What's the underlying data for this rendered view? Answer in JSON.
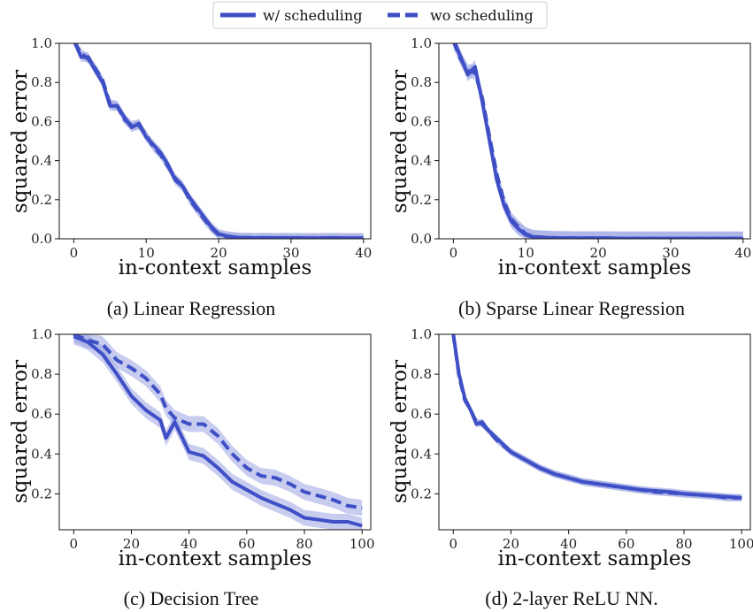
{
  "legend": {
    "items": [
      {
        "label": "w/ scheduling",
        "dash": "solid"
      },
      {
        "label": "wo scheduling",
        "dash": "dashed"
      }
    ]
  },
  "colors": {
    "line": "#3f4fc6",
    "band": "#9aa4e2"
  },
  "chart_data": [
    {
      "type": "line",
      "caption": "(a) Linear Regression",
      "xlabel": "in-context samples",
      "ylabel": "squared error",
      "xlim": [
        -2,
        41
      ],
      "ylim": [
        0,
        1
      ],
      "xticks": [
        0,
        10,
        20,
        30,
        40
      ],
      "yticks": [
        0.0,
        0.2,
        0.4,
        0.6,
        0.8,
        1.0
      ],
      "ytick_labels": [
        "0.0",
        "0.2",
        "0.4",
        "0.6",
        "0.8",
        "1.0"
      ],
      "x": [
        0,
        1,
        2,
        3,
        4,
        5,
        6,
        7,
        8,
        9,
        10,
        11,
        12,
        13,
        14,
        15,
        16,
        17,
        18,
        19,
        20,
        21,
        22,
        23,
        24,
        25,
        26,
        27,
        28,
        29,
        30,
        31,
        32,
        33,
        34,
        35,
        36,
        37,
        38,
        39,
        40
      ],
      "series": [
        {
          "name": "w/ scheduling",
          "values": [
            1.02,
            0.93,
            0.93,
            0.86,
            0.8,
            0.68,
            0.68,
            0.62,
            0.57,
            0.59,
            0.52,
            0.48,
            0.44,
            0.38,
            0.3,
            0.27,
            0.21,
            0.16,
            0.11,
            0.06,
            0.025,
            0.015,
            0.01,
            0.005,
            0.006,
            0.004,
            0.005,
            0.005,
            0.004,
            0.005,
            0.004,
            0.005,
            0.003,
            0.004,
            0.003,
            0.004,
            0.005,
            0.003,
            0.004,
            0.003,
            0.003
          ],
          "band": 0.025
        },
        {
          "name": "wo scheduling",
          "values": [
            1.01,
            0.95,
            0.92,
            0.87,
            0.81,
            0.69,
            0.68,
            0.61,
            0.58,
            0.58,
            0.53,
            0.47,
            0.43,
            0.37,
            0.31,
            0.27,
            0.2,
            0.15,
            0.1,
            0.055,
            0.02,
            0.012,
            0.008,
            0.005,
            0.005,
            0.004,
            0.004,
            0.005,
            0.004,
            0.004,
            0.004,
            0.004,
            0.003,
            0.004,
            0.003,
            0.004,
            0.004,
            0.003,
            0.003,
            0.003,
            0.003
          ],
          "band": 0.025
        }
      ]
    },
    {
      "type": "line",
      "caption": "(b) Sparse Linear Regression",
      "xlabel": "in-context samples",
      "ylabel": "squared error",
      "xlim": [
        -2,
        41
      ],
      "ylim": [
        0,
        1
      ],
      "xticks": [
        0,
        10,
        20,
        30,
        40
      ],
      "yticks": [
        0.0,
        0.2,
        0.4,
        0.6,
        0.8,
        1.0
      ],
      "ytick_labels": [
        "0.0",
        "0.2",
        "0.4",
        "0.6",
        "0.8",
        "1.0"
      ],
      "x": [
        0,
        1,
        2,
        3,
        4,
        5,
        6,
        7,
        8,
        9,
        10,
        11,
        12,
        13,
        14,
        15,
        16,
        17,
        18,
        19,
        20,
        21,
        22,
        23,
        24,
        25,
        26,
        27,
        28,
        29,
        30,
        31,
        32,
        33,
        34,
        35,
        36,
        37,
        38,
        39,
        40
      ],
      "series": [
        {
          "name": "w/ scheduling",
          "values": [
            1.02,
            0.93,
            0.84,
            0.88,
            0.7,
            0.5,
            0.3,
            0.17,
            0.09,
            0.05,
            0.02,
            0.01,
            0.008,
            0.006,
            0.005,
            0.004,
            0.004,
            0.003,
            0.003,
            0.003,
            0.003,
            0.003,
            0.003,
            0.002,
            0.002,
            0.002,
            0.002,
            0.002,
            0.002,
            0.002,
            0.002,
            0.002,
            0.002,
            0.002,
            0.002,
            0.002,
            0.002,
            0.002,
            0.002,
            0.002,
            0.002
          ],
          "band": 0.035
        },
        {
          "name": "wo scheduling",
          "values": [
            1.01,
            0.92,
            0.86,
            0.85,
            0.72,
            0.52,
            0.33,
            0.19,
            0.1,
            0.06,
            0.025,
            0.012,
            0.008,
            0.006,
            0.005,
            0.004,
            0.004,
            0.003,
            0.003,
            0.003,
            0.003,
            0.003,
            0.003,
            0.002,
            0.002,
            0.002,
            0.002,
            0.002,
            0.002,
            0.002,
            0.002,
            0.002,
            0.002,
            0.002,
            0.002,
            0.002,
            0.002,
            0.002,
            0.002,
            0.002,
            0.002
          ],
          "band": 0.035
        }
      ]
    },
    {
      "type": "line",
      "caption": "(c) Decision Tree",
      "xlabel": "in-context samples",
      "ylabel": "squared error",
      "xlim": [
        -5,
        103
      ],
      "ylim": [
        0.02,
        1.0
      ],
      "xticks": [
        0,
        20,
        40,
        60,
        80,
        100
      ],
      "yticks": [
        0.2,
        0.4,
        0.6,
        0.8,
        1.0
      ],
      "ytick_labels": [
        "0.2",
        "0.4",
        "0.6",
        "0.8",
        "1.0"
      ],
      "x": [
        0,
        5,
        10,
        15,
        20,
        25,
        30,
        32,
        35,
        40,
        45,
        50,
        55,
        60,
        65,
        70,
        75,
        80,
        85,
        90,
        95,
        100
      ],
      "series": [
        {
          "name": "w/ scheduling",
          "values": [
            0.99,
            0.96,
            0.9,
            0.8,
            0.69,
            0.62,
            0.57,
            0.48,
            0.56,
            0.41,
            0.39,
            0.33,
            0.26,
            0.22,
            0.18,
            0.15,
            0.12,
            0.08,
            0.07,
            0.06,
            0.06,
            0.04
          ],
          "band": 0.04
        },
        {
          "name": "wo scheduling",
          "values": [
            1.0,
            0.97,
            0.95,
            0.87,
            0.83,
            0.78,
            0.7,
            0.63,
            0.58,
            0.55,
            0.55,
            0.49,
            0.4,
            0.33,
            0.29,
            0.28,
            0.25,
            0.21,
            0.19,
            0.17,
            0.14,
            0.13
          ],
          "band": 0.04
        }
      ]
    },
    {
      "type": "line",
      "caption": "(d) 2-layer ReLU NN.",
      "xlabel": "in-context samples",
      "ylabel": "squared error",
      "xlim": [
        -5,
        103
      ],
      "ylim": [
        0.02,
        1.0
      ],
      "xticks": [
        0,
        20,
        40,
        60,
        80,
        100
      ],
      "yticks": [
        0.2,
        0.4,
        0.6,
        0.8,
        1.0
      ],
      "ytick_labels": [
        "0.2",
        "0.4",
        "0.6",
        "0.8",
        "1.0"
      ],
      "x": [
        0,
        2,
        4,
        6,
        8,
        10,
        12,
        15,
        20,
        25,
        30,
        35,
        40,
        45,
        50,
        55,
        60,
        65,
        70,
        75,
        80,
        85,
        90,
        95,
        100
      ],
      "series": [
        {
          "name": "w/ scheduling",
          "values": [
            1.0,
            0.8,
            0.68,
            0.62,
            0.55,
            0.56,
            0.52,
            0.48,
            0.41,
            0.37,
            0.33,
            0.3,
            0.28,
            0.26,
            0.25,
            0.24,
            0.23,
            0.22,
            0.215,
            0.21,
            0.2,
            0.195,
            0.19,
            0.185,
            0.18
          ],
          "band": 0.018
        },
        {
          "name": "wo scheduling",
          "values": [
            1.0,
            0.79,
            0.67,
            0.62,
            0.56,
            0.55,
            0.52,
            0.47,
            0.41,
            0.37,
            0.33,
            0.3,
            0.28,
            0.26,
            0.25,
            0.24,
            0.23,
            0.22,
            0.21,
            0.205,
            0.2,
            0.195,
            0.19,
            0.18,
            0.18
          ],
          "band": 0.018
        }
      ]
    }
  ]
}
